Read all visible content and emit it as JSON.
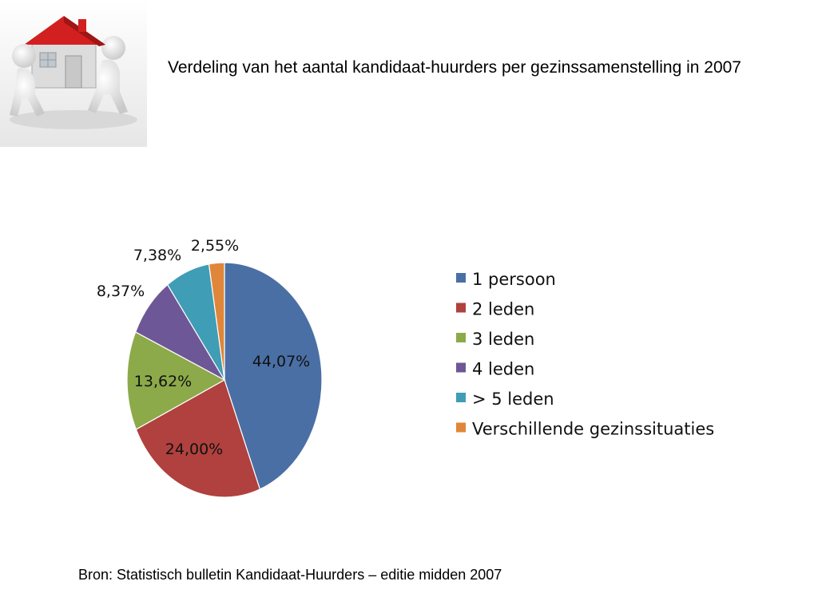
{
  "slide": {
    "title": "Verdeling van het aantal kandidaat-huurders per gezinssamenstelling in 2007",
    "source": "Bron: Statistisch bulletin Kandidaat-Huurders – editie midden 2007",
    "logo_icon": "people-carrying-house-icon"
  },
  "chart_data": {
    "type": "pie",
    "categories": [
      "1 persoon",
      "2 leden",
      "3 leden",
      "4 leden",
      "> 5 leden",
      "Verschillende gezinssituaties"
    ],
    "values": [
      44.07,
      24.0,
      13.62,
      8.37,
      7.38,
      2.55
    ],
    "value_labels": [
      "44,07%",
      "24,00%",
      "13,62%",
      "8,37%",
      "7,38%",
      "2,55%"
    ],
    "colors": [
      "#4a6fa5",
      "#b0413e",
      "#8caa4a",
      "#6e5796",
      "#3f9db5",
      "#e0863a"
    ],
    "legend_position": "right",
    "start_angle": "12 o'clock, clockwise"
  }
}
